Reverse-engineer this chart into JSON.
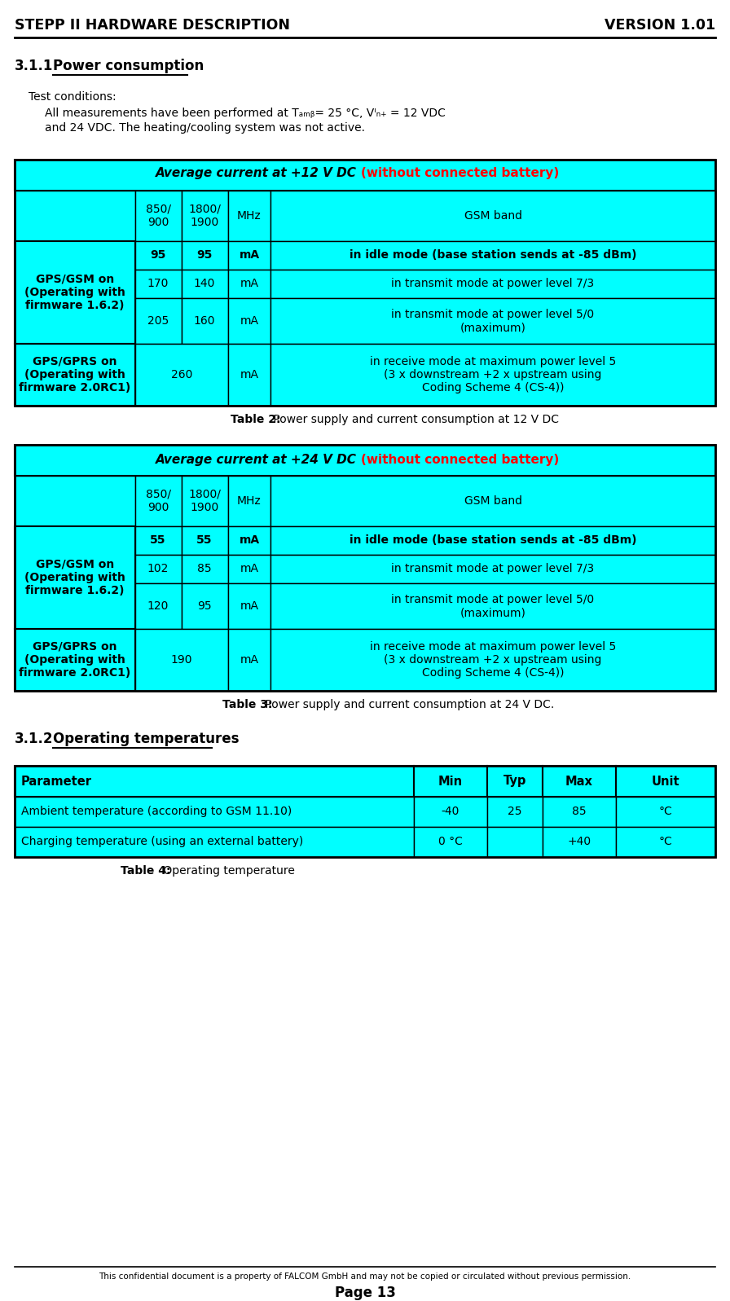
{
  "header_left": "STEPP II HARDWARE DESCRIPTION",
  "header_right": "VERSION 1.01",
  "section_311": "3.1.1",
  "section_311_title": "Power consumption",
  "test_conditions_title": "Test conditions:",
  "table2_header_black": "Average current at +12 V DC ",
  "table2_header_red": "(without connected battery)",
  "table2_col2_850_900": "850/\n900",
  "table2_col2_1800_1900": "1800/\n1900",
  "table2_col2_MHz": "MHz",
  "table2_col2_GSM": "GSM band",
  "table2_col1_header": "GPS/GSM on\n(Operating with\nfirmware 1.6.2)",
  "table2_row1_vals": [
    "95",
    "95",
    "mA",
    "in idle mode (base station sends at -85 dBm)"
  ],
  "table2_row2_vals": [
    "170",
    "140",
    "mA",
    "in transmit mode at power level 7/3"
  ],
  "table2_row3_vals": [
    "205",
    "160",
    "mA",
    "in transmit mode at power level 5/0\n(maximum)"
  ],
  "table2_gprs_col1": "GPS/GPRS on\n(Operating with\nfirmware 2.0RC1)",
  "table2_gprs_val": "260",
  "table2_gprs_unit": "mA",
  "table2_gprs_desc": "in receive mode at maximum power level 5\n(3 x downstream +2 x upstream using\nCoding Scheme 4 (CS-4))",
  "table2_caption_bold": "Table 2:",
  "table2_caption": " Power supply and current consumption at 12 V DC",
  "table3_header_black": "Average current at +24 V DC ",
  "table3_header_red": "(without connected battery)",
  "table3_col1_header": "GPS/GSM on\n(Operating with\nfirmware 1.6.2)",
  "table3_row1_vals": [
    "55",
    "55",
    "mA",
    "in idle mode (base station sends at -85 dBm)"
  ],
  "table3_row2_vals": [
    "102",
    "85",
    "mA",
    "in transmit mode at power level 7/3"
  ],
  "table3_row3_vals": [
    "120",
    "95",
    "mA",
    "in transmit mode at power level 5/0\n(maximum)"
  ],
  "table3_gprs_col1": "GPS/GPRS on\n(Operating with\nfirmware 2.0RC1)",
  "table3_gprs_val": "190",
  "table3_gprs_unit": "mA",
  "table3_gprs_desc": "in receive mode at maximum power level 5\n(3 x downstream +2 x upstream using\nCoding Scheme 4 (CS-4))",
  "table3_caption_bold": "Table 3:",
  "table3_caption": " Power supply and current consumption at 24 V DC.",
  "section_312": "3.1.2",
  "section_312_title": "Operating temperatures",
  "table4_headers": [
    "Parameter",
    "Min",
    "Typ",
    "Max",
    "Unit"
  ],
  "table4_row1": [
    "Ambient temperature (according to GSM 11.10)",
    "-40",
    "25",
    "85",
    "°C"
  ],
  "table4_row2": [
    "Charging temperature (using an external battery)",
    "0 °C",
    "",
    "+40",
    "°C"
  ],
  "table4_caption_bold": "Table 4:",
  "table4_caption": " Operating temperature",
  "footer_text": "This confidential document is a property of FALCOM GmbH and may not be copied or circulated without previous permission.",
  "footer_page": "Page 13",
  "bg_cyan": "#00FFFF",
  "text_black": "#000000",
  "text_red": "#FF0000"
}
